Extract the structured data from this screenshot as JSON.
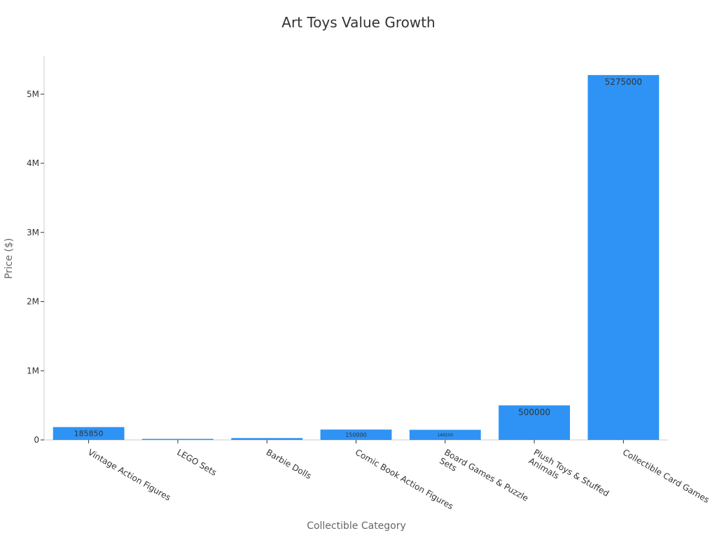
{
  "chart_data": {
    "type": "bar",
    "title": "Art Toys Value Growth",
    "xlabel": "Collectible Category",
    "ylabel": "Price ($)",
    "categories": [
      "Vintage Action Figures",
      "LEGO Sets",
      "Barbie Dolls",
      "Comic Book Action Figures",
      "Board Games & Puzzle Sets",
      "Plush Toys & Stuffed Animals",
      "Collectible Card Games"
    ],
    "values": [
      185850,
      15000,
      27000,
      150000,
      146500,
      500000,
      5275000
    ],
    "data_labels": [
      "185850",
      "",
      "",
      "150000",
      "146500",
      "500000",
      "5275000"
    ],
    "ylim": [
      0,
      5550000
    ],
    "yticks": [
      0,
      1000000,
      2000000,
      3000000,
      4000000,
      5000000
    ],
    "ytick_labels": [
      "0",
      "1M",
      "2M",
      "3M",
      "4M",
      "5M"
    ],
    "bar_color": "#2e93f5",
    "grid": false
  }
}
